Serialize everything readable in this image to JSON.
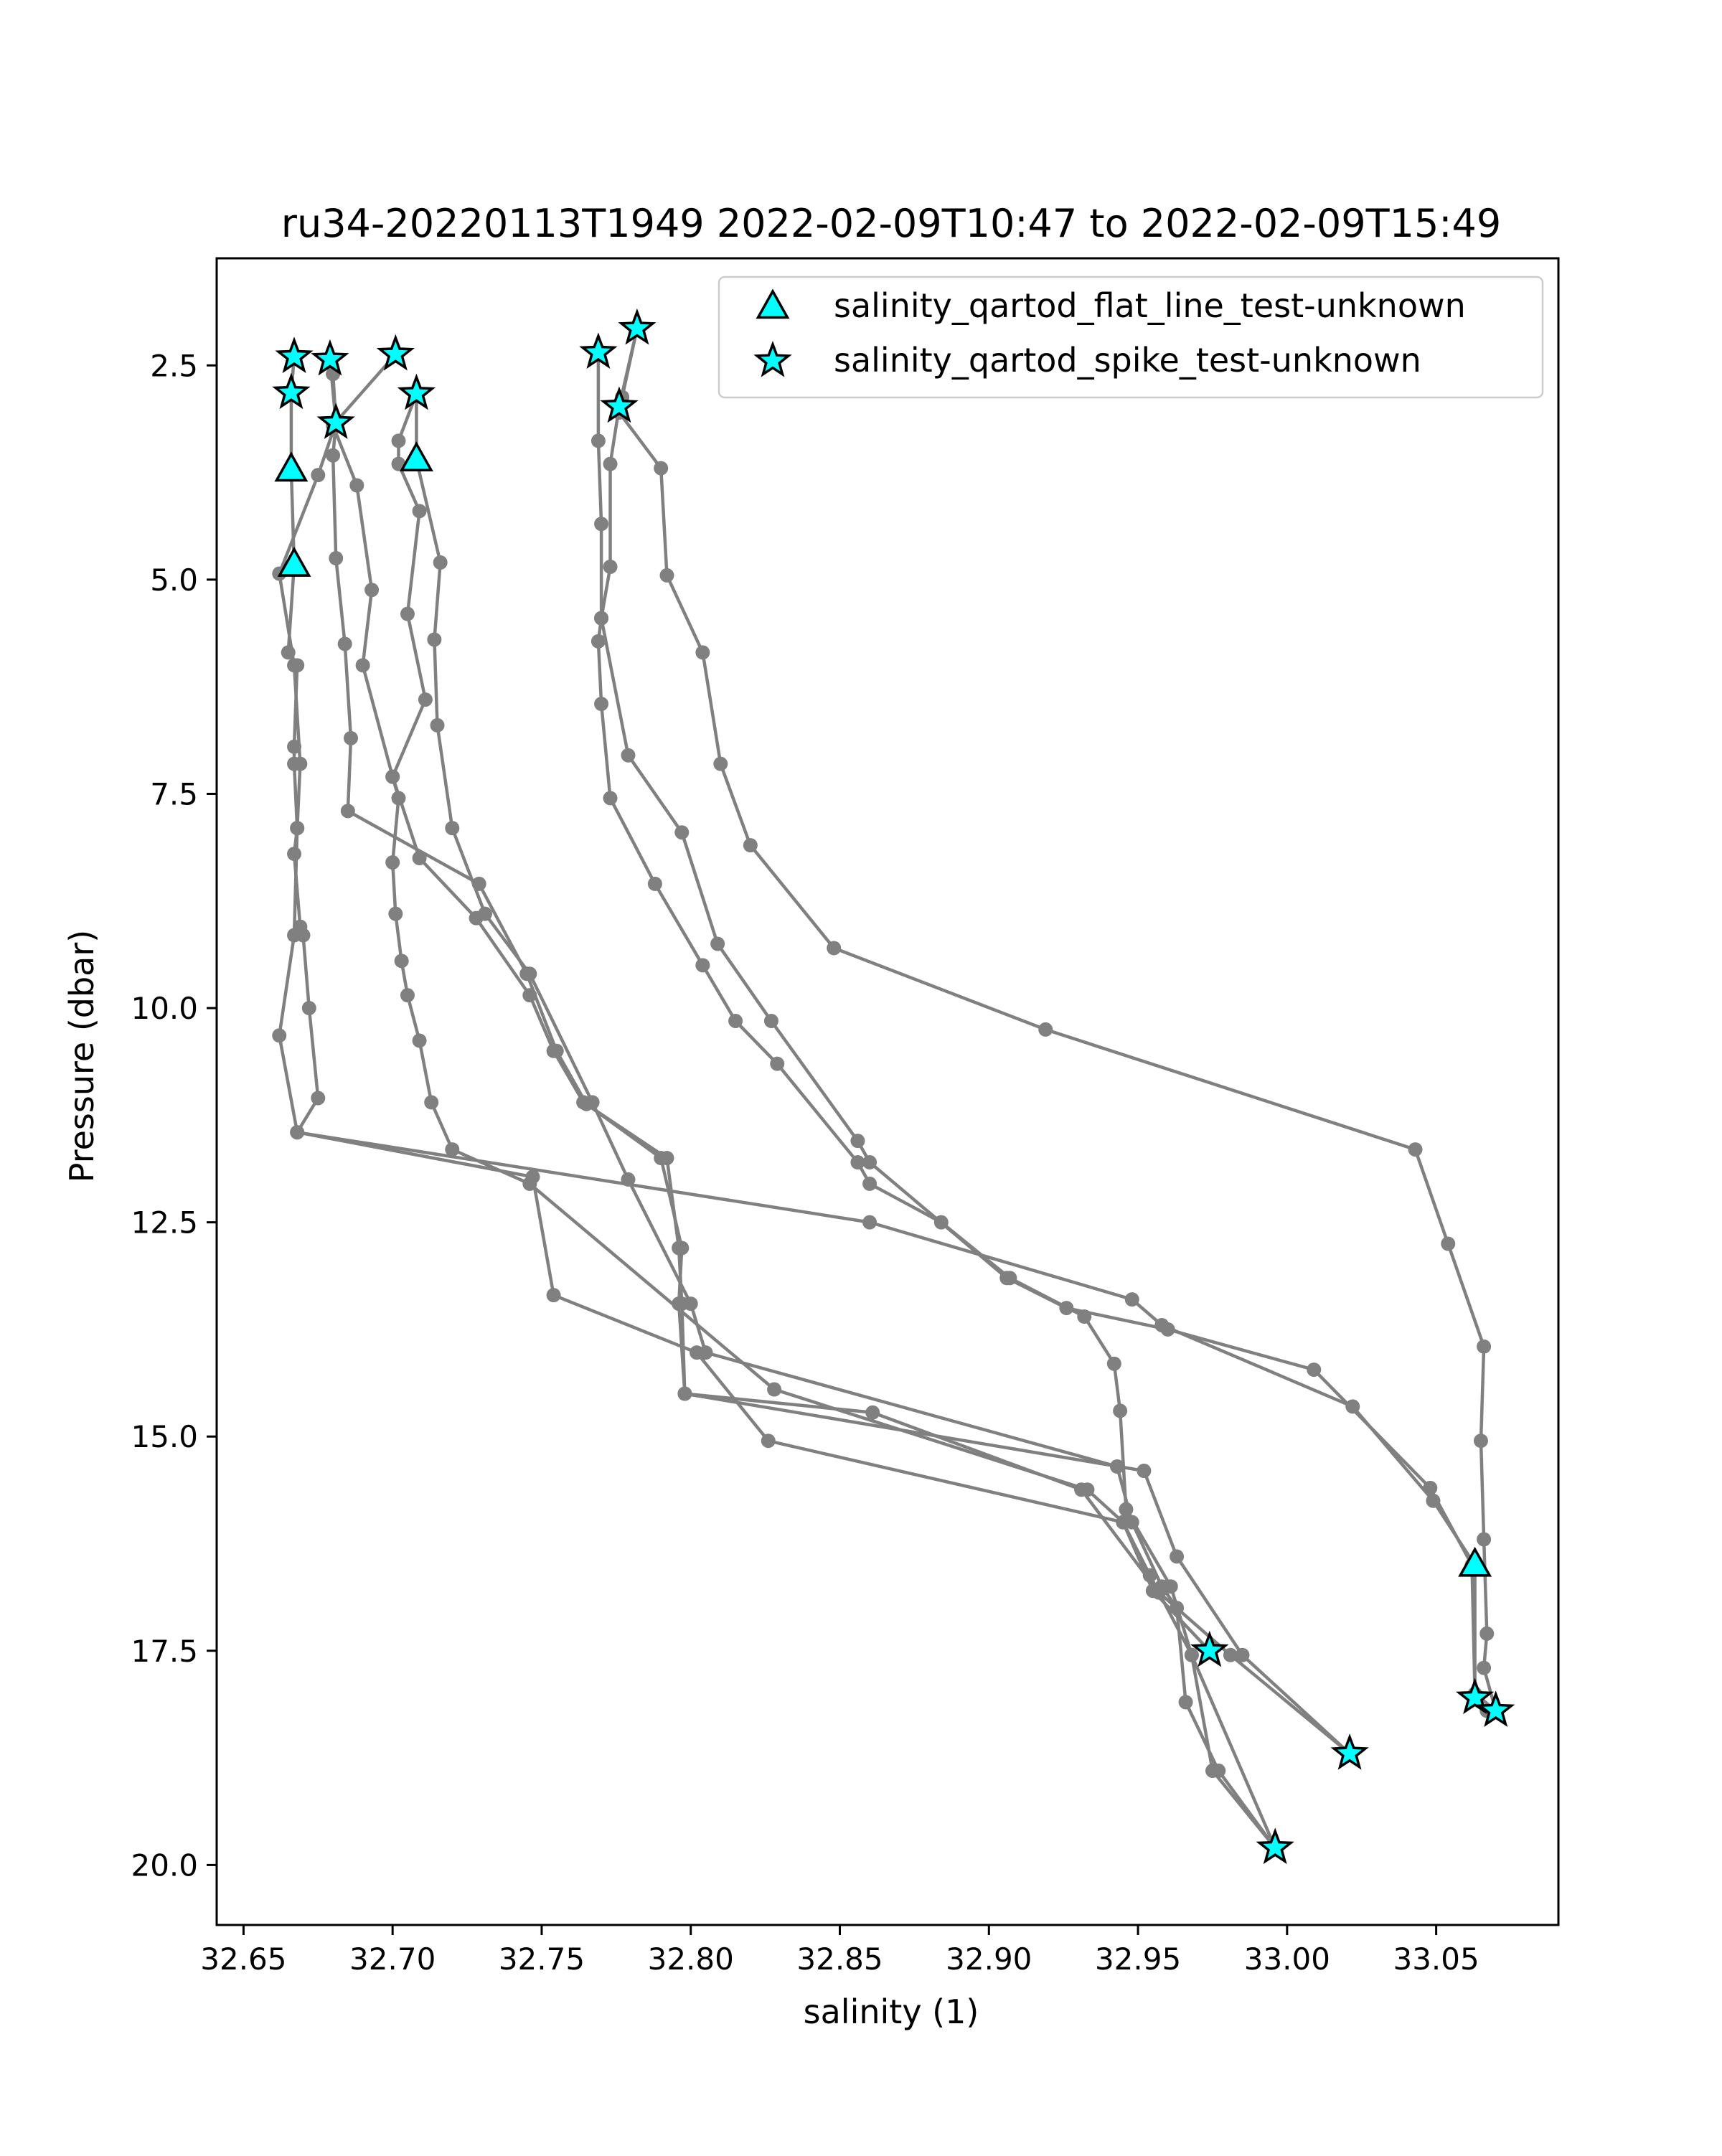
{
  "chart_data": {
    "type": "line",
    "title": "ru34-20220113T1949 2022-02-09T10:47 to 2022-02-09T15:49",
    "xlabel": "salinity (1)",
    "ylabel": "Pressure (dbar)",
    "xlim": [
      32.641,
      33.091
    ],
    "ylim": [
      20.7,
      1.25
    ],
    "y_inverted": true,
    "grid": false,
    "legend_position": "top-right",
    "x_ticks": [
      "32.65",
      "32.70",
      "32.75",
      "32.80",
      "32.85",
      "32.90",
      "32.95",
      "33.00",
      "33.05"
    ],
    "x_tick_values": [
      32.65,
      32.7,
      32.75,
      32.8,
      32.85,
      32.9,
      32.95,
      33.0,
      33.05
    ],
    "y_ticks": [
      "2.5",
      "5.0",
      "7.5",
      "10.0",
      "12.5",
      "15.0",
      "17.5",
      "20.0"
    ],
    "y_tick_values": [
      2.5,
      5.0,
      7.5,
      10.0,
      12.5,
      15.0,
      17.5,
      20.0
    ],
    "colors": {
      "line": "#808080",
      "marker": "#808080",
      "flag_fill": "#00ffff",
      "flag_edge": "#000000"
    },
    "series": [
      {
        "points": [
          [
            32.667,
            2.4
          ],
          [
            32.666,
            2.82
          ],
          [
            32.666,
            3.72
          ],
          [
            32.667,
            4.83
          ],
          [
            32.665,
            5.85
          ],
          [
            32.668,
            6.0
          ],
          [
            32.667,
            6.95
          ],
          [
            32.667,
            7.15
          ],
          [
            32.668,
            7.9
          ],
          [
            32.667,
            8.2
          ],
          [
            32.669,
            9.05
          ],
          [
            32.67,
            9.15
          ],
          [
            32.672,
            10.0
          ],
          [
            32.675,
            11.05
          ],
          [
            32.668,
            11.45
          ],
          [
            32.747,
            11.97
          ],
          [
            32.754,
            13.35
          ],
          [
            32.802,
            14.02
          ],
          [
            32.826,
            15.05
          ],
          [
            32.945,
            16.0
          ],
          [
            32.955,
            16.8
          ],
          [
            32.974,
            17.5
          ]
        ]
      },
      {
        "points": [
          [
            32.679,
            2.43
          ],
          [
            32.68,
            2.6
          ],
          [
            32.681,
            3.17
          ],
          [
            32.68,
            3.55
          ],
          [
            32.681,
            4.75
          ],
          [
            32.684,
            5.75
          ],
          [
            32.686,
            6.85
          ],
          [
            32.685,
            7.7
          ],
          [
            32.729,
            8.55
          ],
          [
            32.745,
            9.6
          ],
          [
            32.755,
            10.5
          ],
          [
            32.765,
            11.12
          ],
          [
            32.79,
            11.75
          ],
          [
            32.797,
            12.8
          ],
          [
            32.796,
            13.45
          ],
          [
            32.798,
            14.5
          ],
          [
            32.861,
            14.72
          ],
          [
            32.931,
            15.62
          ],
          [
            32.957,
            16.82
          ],
          [
            32.981,
            17.55
          ],
          [
            33.021,
            18.7
          ]
        ]
      },
      {
        "points": [
          [
            32.679,
            2.43
          ],
          [
            32.681,
            3.17
          ],
          [
            32.675,
            3.78
          ],
          [
            32.662,
            4.93
          ],
          [
            32.667,
            6.0
          ],
          [
            32.669,
            7.15
          ],
          [
            32.668,
            7.9
          ],
          [
            32.667,
            9.15
          ],
          [
            32.662,
            10.32
          ],
          [
            32.668,
            11.45
          ],
          [
            32.86,
            12.5
          ],
          [
            32.948,
            13.4
          ],
          [
            32.958,
            13.7
          ],
          [
            33.022,
            14.65
          ],
          [
            33.049,
            15.75
          ],
          [
            33.063,
            16.5
          ],
          [
            33.063,
            18.05
          ],
          [
            33.067,
            18.2
          ]
        ]
      },
      {
        "points": [
          [
            32.701,
            2.37
          ],
          [
            32.68,
            3.2
          ],
          [
            32.688,
            3.9
          ],
          [
            32.693,
            5.12
          ],
          [
            32.69,
            6.0
          ],
          [
            32.7,
            7.3
          ],
          [
            32.709,
            8.25
          ],
          [
            32.728,
            8.95
          ],
          [
            32.746,
            9.85
          ],
          [
            32.754,
            10.5
          ],
          [
            32.764,
            11.1
          ],
          [
            32.792,
            11.75
          ],
          [
            32.796,
            12.8
          ],
          [
            32.797,
            13.45
          ],
          [
            32.798,
            14.5
          ],
          [
            32.952,
            15.4
          ],
          [
            32.963,
            16.4
          ],
          [
            32.985,
            17.55
          ],
          [
            33.021,
            18.7
          ]
        ]
      },
      {
        "points": [
          [
            32.708,
            2.83
          ],
          [
            32.702,
            3.38
          ],
          [
            32.702,
            3.65
          ],
          [
            32.709,
            4.2
          ],
          [
            32.705,
            5.4
          ],
          [
            32.711,
            6.4
          ],
          [
            32.7,
            7.3
          ],
          [
            32.702,
            7.55
          ],
          [
            32.7,
            8.3
          ],
          [
            32.701,
            8.9
          ],
          [
            32.703,
            9.45
          ],
          [
            32.705,
            9.85
          ],
          [
            32.709,
            10.38
          ],
          [
            32.713,
            11.1
          ],
          [
            32.72,
            11.65
          ],
          [
            32.746,
            12.05
          ],
          [
            32.828,
            14.45
          ],
          [
            32.933,
            15.62
          ],
          [
            32.945,
            16.0
          ],
          [
            32.954,
            16.62
          ],
          [
            32.968,
            17.55
          ],
          [
            32.996,
            19.8
          ]
        ]
      },
      {
        "points": [
          [
            32.708,
            2.83
          ],
          [
            32.708,
            3.6
          ],
          [
            32.716,
            4.8
          ],
          [
            32.714,
            5.7
          ],
          [
            32.715,
            6.7
          ],
          [
            32.72,
            7.9
          ],
          [
            32.731,
            8.9
          ],
          [
            32.746,
            9.6
          ],
          [
            32.767,
            11.1
          ],
          [
            32.779,
            12.0
          ],
          [
            32.8,
            13.45
          ],
          [
            32.805,
            14.02
          ],
          [
            32.943,
            15.35
          ],
          [
            32.948,
            16.0
          ],
          [
            32.958,
            16.75
          ],
          [
            32.963,
            17.0
          ],
          [
            32.966,
            18.1
          ],
          [
            32.977,
            18.9
          ],
          [
            32.996,
            19.8
          ]
        ]
      },
      {
        "points": [
          [
            32.769,
            2.35
          ],
          [
            32.769,
            3.38
          ],
          [
            32.77,
            4.35
          ],
          [
            32.77,
            5.45
          ],
          [
            32.769,
            5.72
          ],
          [
            32.77,
            6.45
          ],
          [
            32.773,
            7.55
          ],
          [
            32.788,
            8.55
          ],
          [
            32.804,
            9.5
          ],
          [
            32.815,
            10.15
          ],
          [
            32.829,
            10.65
          ],
          [
            32.856,
            11.8
          ],
          [
            32.86,
            12.05
          ],
          [
            32.884,
            12.5
          ],
          [
            32.907,
            13.15
          ],
          [
            32.932,
            13.6
          ],
          [
            32.942,
            14.15
          ],
          [
            32.944,
            14.7
          ],
          [
            32.946,
            15.85
          ],
          [
            32.961,
            16.75
          ],
          [
            32.968,
            17.55
          ],
          [
            32.975,
            18.9
          ],
          [
            32.996,
            19.8
          ]
        ]
      },
      {
        "points": [
          [
            32.782,
            2.07
          ],
          [
            32.776,
            2.98
          ],
          [
            32.773,
            3.65
          ],
          [
            32.773,
            4.85
          ],
          [
            32.77,
            5.45
          ],
          [
            32.779,
            7.05
          ],
          [
            32.797,
            7.95
          ],
          [
            32.809,
            9.25
          ],
          [
            32.827,
            10.15
          ],
          [
            32.856,
            11.55
          ],
          [
            32.86,
            11.8
          ],
          [
            32.906,
            13.15
          ],
          [
            32.926,
            13.5
          ],
          [
            32.96,
            13.75
          ],
          [
            33.009,
            14.22
          ],
          [
            33.048,
            15.6
          ],
          [
            33.062,
            16.5
          ],
          [
            33.063,
            18.0
          ],
          [
            33.07,
            18.2
          ]
        ]
      },
      {
        "points": [
          [
            32.782,
            2.07
          ],
          [
            32.777,
            2.87
          ],
          [
            32.776,
            3.05
          ],
          [
            32.79,
            3.7
          ],
          [
            32.792,
            4.95
          ],
          [
            32.804,
            5.85
          ],
          [
            32.81,
            7.15
          ],
          [
            32.82,
            8.1
          ],
          [
            32.848,
            9.3
          ],
          [
            32.919,
            10.25
          ],
          [
            33.043,
            11.65
          ],
          [
            33.054,
            12.75
          ],
          [
            33.066,
            13.95
          ],
          [
            33.065,
            15.05
          ],
          [
            33.066,
            16.2
          ],
          [
            33.067,
            17.3
          ],
          [
            33.066,
            17.7
          ],
          [
            33.07,
            18.2
          ]
        ]
      }
    ],
    "flags": [
      {
        "name": "salinity_qartod_flat_line_test-unknown",
        "marker": "triangle",
        "points": [
          [
            32.666,
            3.72
          ],
          [
            32.667,
            4.83
          ],
          [
            32.708,
            3.6
          ],
          [
            33.063,
            16.5
          ]
        ]
      },
      {
        "name": "salinity_qartod_spike_test-unknown",
        "marker": "star",
        "points": [
          [
            32.667,
            2.4
          ],
          [
            32.679,
            2.43
          ],
          [
            32.666,
            2.82
          ],
          [
            32.681,
            3.17
          ],
          [
            32.701,
            2.37
          ],
          [
            32.708,
            2.83
          ],
          [
            32.769,
            2.35
          ],
          [
            32.782,
            2.07
          ],
          [
            32.776,
            2.98
          ],
          [
            32.974,
            17.5
          ],
          [
            33.021,
            18.7
          ],
          [
            33.063,
            18.05
          ],
          [
            33.07,
            18.2
          ],
          [
            32.996,
            19.8
          ]
        ]
      }
    ]
  }
}
